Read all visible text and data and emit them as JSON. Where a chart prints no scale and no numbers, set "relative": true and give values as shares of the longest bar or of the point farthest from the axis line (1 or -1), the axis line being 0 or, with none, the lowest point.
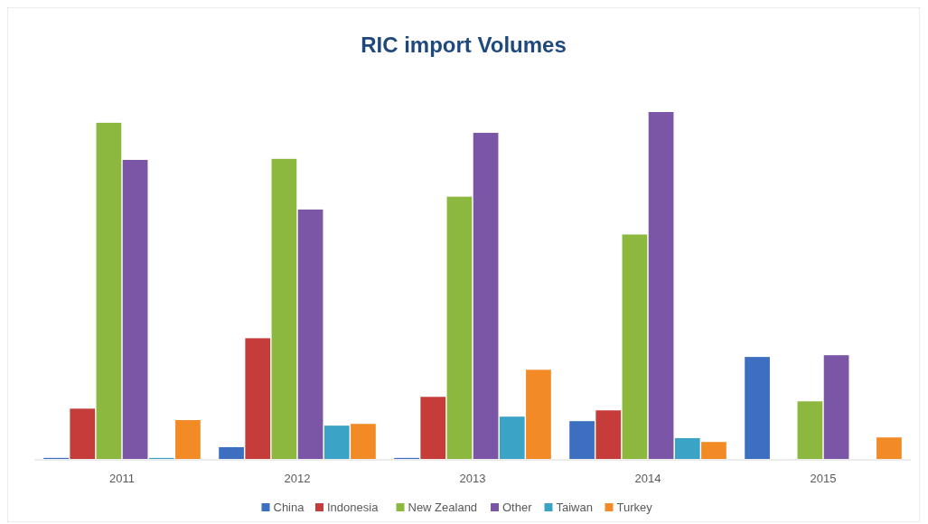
{
  "chart_data": {
    "type": "bar",
    "title": "RIC import Volumes",
    "relative": true,
    "legend": "bottom",
    "categories": [
      "2011",
      "2012",
      "2013",
      "2014",
      "2015"
    ],
    "series": [
      {
        "name": "China",
        "color": "#3d6fc0",
        "values": [
          0.003,
          0.034,
          0.003,
          0.109,
          0.294
        ]
      },
      {
        "name": "Indonesia",
        "color": "#c63c3a",
        "values": [
          0.145,
          0.348,
          0.179,
          0.14,
          null
        ]
      },
      {
        "name": "New Zealand",
        "color": "#8cb83f",
        "values": [
          0.969,
          0.865,
          0.756,
          0.647,
          0.166
        ]
      },
      {
        "name": "Other",
        "color": "#7b55a6",
        "values": [
          0.862,
          0.719,
          0.94,
          1,
          0.299
        ]
      },
      {
        "name": "Taiwan",
        "color": "#3aa3c6",
        "values": [
          0.003,
          0.096,
          0.122,
          0.06,
          null
        ]
      },
      {
        "name": "Turkey",
        "color": "#f28a25",
        "values": [
          0.112,
          0.101,
          0.257,
          0.049,
          0.062
        ]
      }
    ]
  }
}
